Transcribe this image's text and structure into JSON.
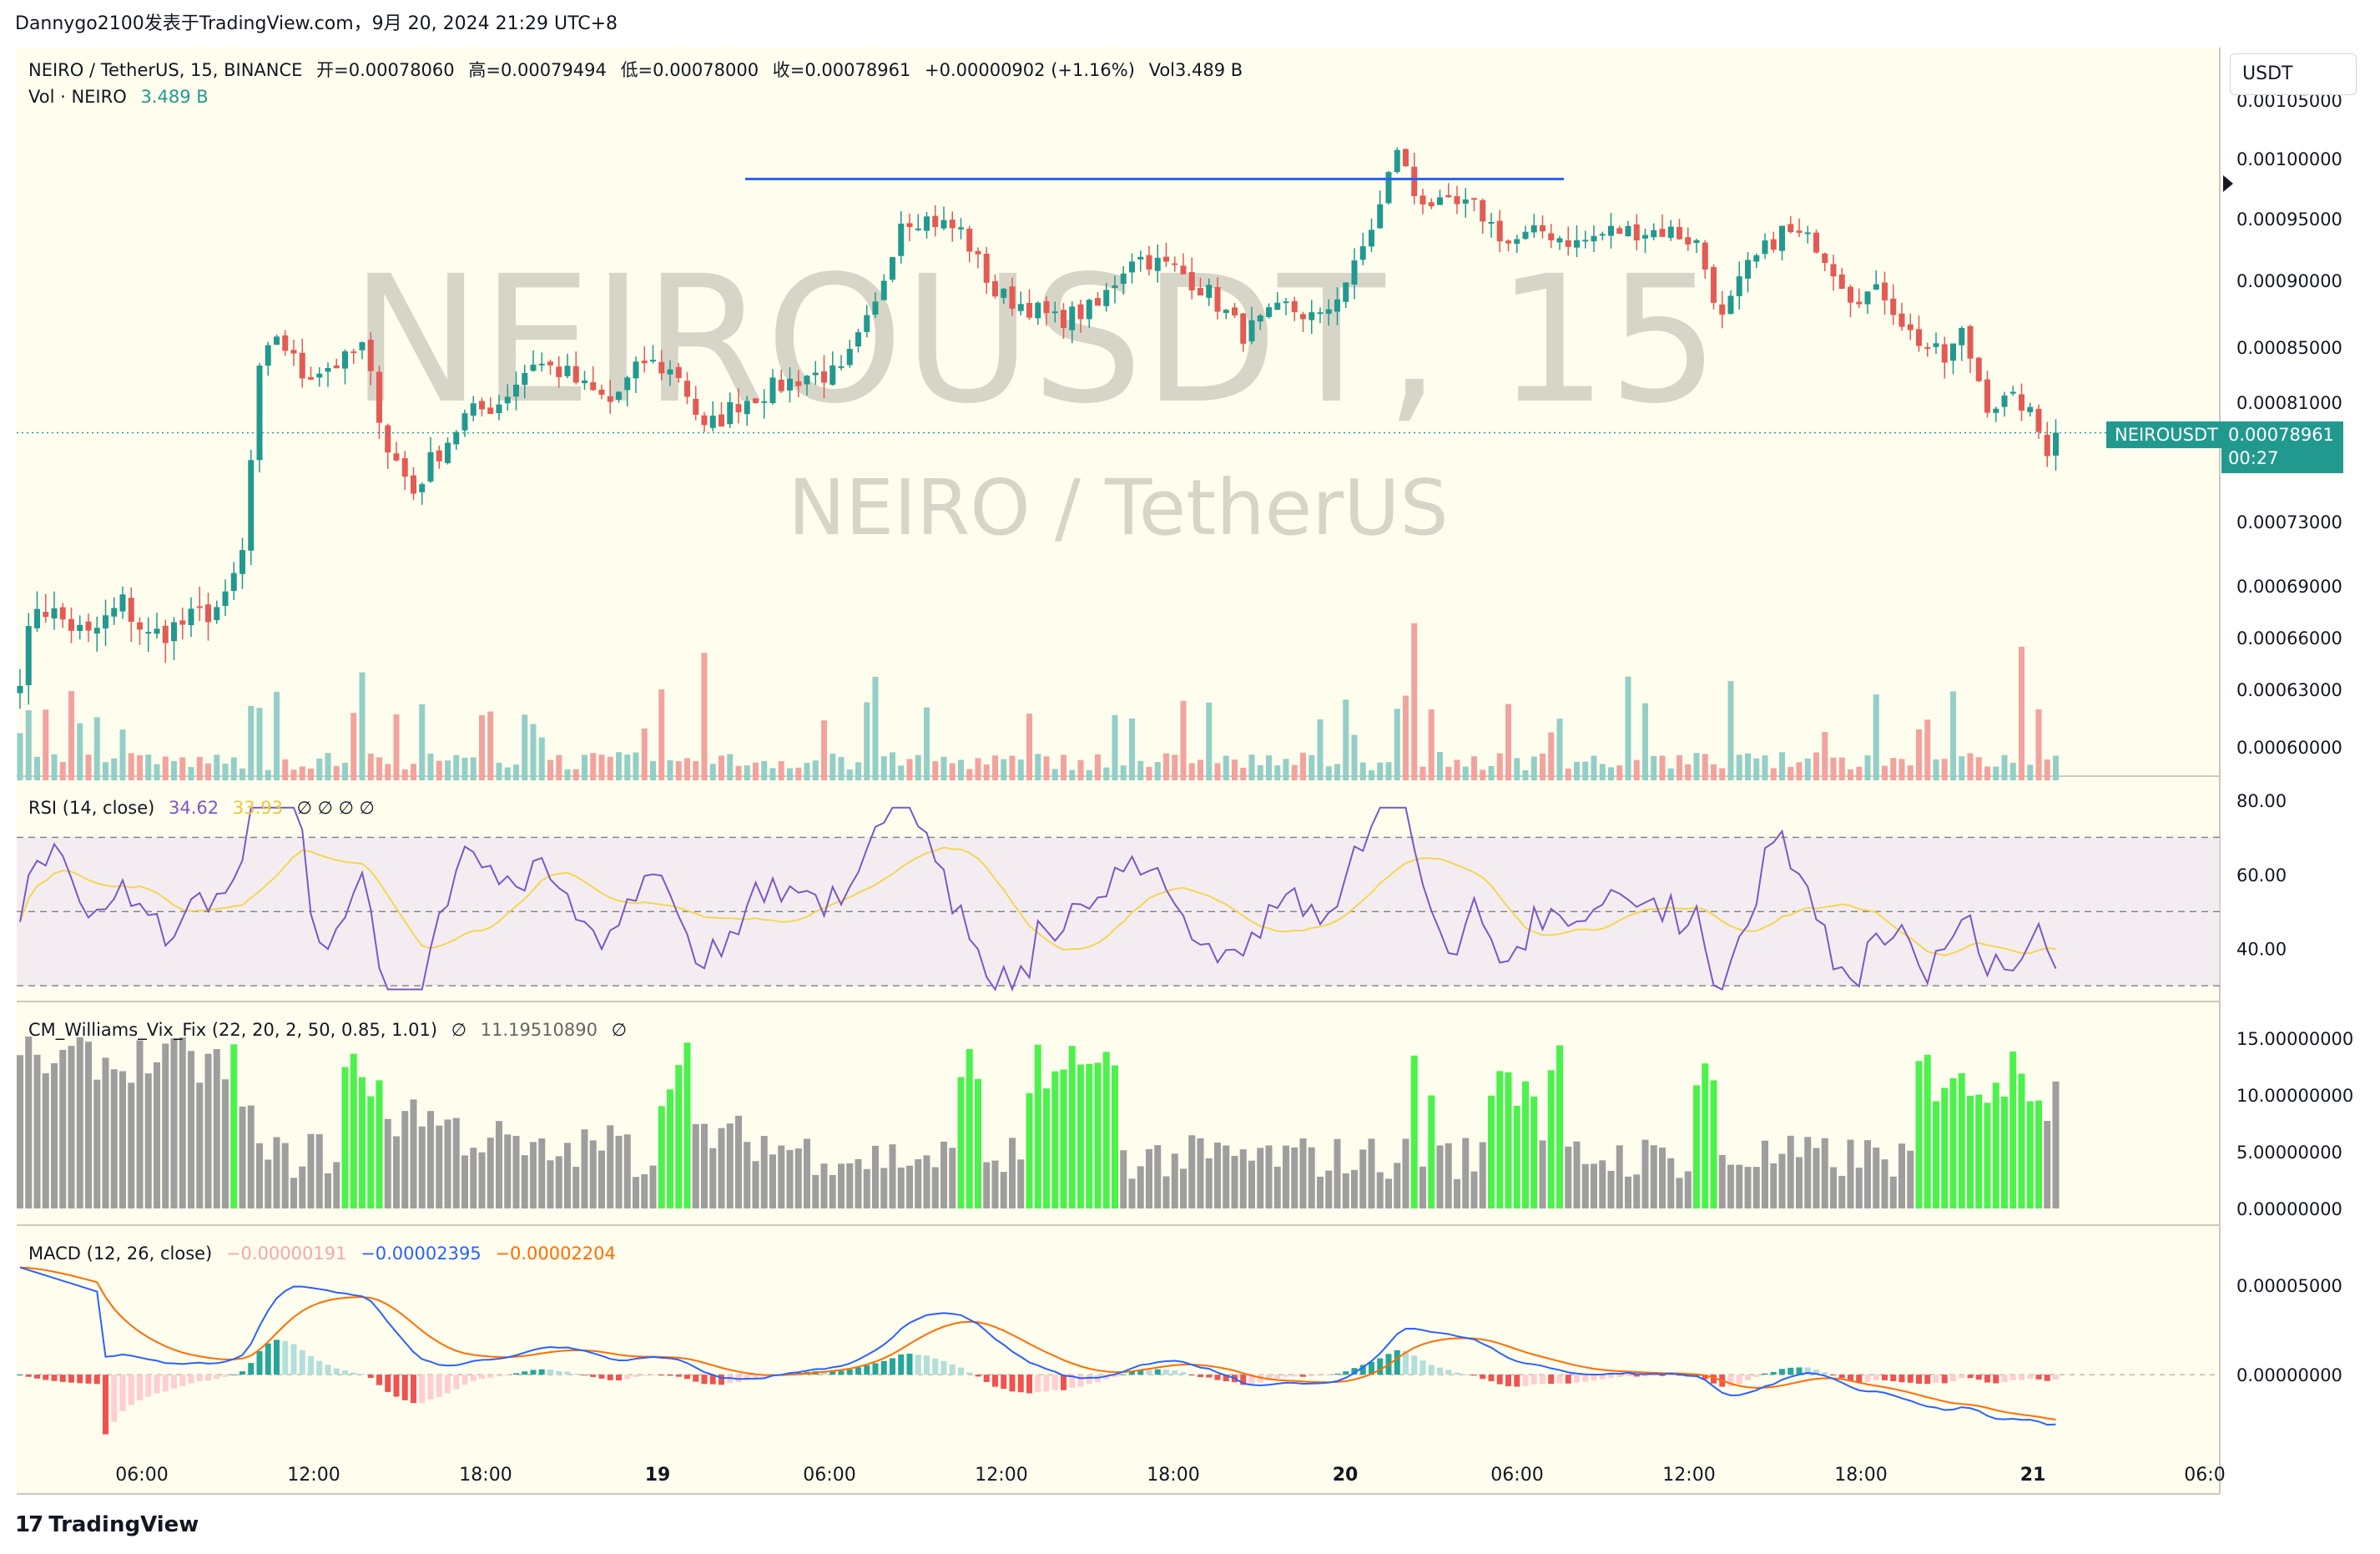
{
  "header": {
    "attribution": "Dannygo2100发表于TradingView.com，9月 20, 2024 21:29 UTC+8"
  },
  "brand": {
    "logo": "17",
    "name": "TradingView"
  },
  "currency_selector": {
    "label": "USDT"
  },
  "main_legend": {
    "symbol": "NEIRO / TetherUS, 15, BINANCE",
    "open": "开=0.00078060",
    "high": "高=0.00079494",
    "low": "低=0.00078000",
    "close": "收=0.00078961",
    "change": "+0.00000902 (+1.16%)",
    "volume": "Vol3.489 B"
  },
  "vol_legend": {
    "label": "Vol · NEIRO",
    "value": "3.489 B"
  },
  "watermark": {
    "symbol": "NEIROUSDT, 15",
    "pair": "NEIRO / TetherUS"
  },
  "price_tag": {
    "symbol": "NEIROUSDT",
    "price": "0.00078961",
    "countdown": "00:27"
  },
  "rsi_legend": {
    "label": "RSI (14, close)",
    "value": "34.62",
    "ma": "33.93",
    "extras": "∅ ∅ ∅ ∅"
  },
  "vix_legend": {
    "label": "CM_Williams_Vix_Fix (22, 20, 2, 50, 0.85, 1.01)",
    "n1": "∅",
    "value": "11.19510890",
    "n2": "∅"
  },
  "macd_legend": {
    "label": "MACD (12, 26, close)",
    "hist": "−0.00000191",
    "macd": "−0.00002395",
    "signal": "−0.00002204"
  },
  "colors": {
    "up": "#22998f",
    "down": "#e25b54",
    "bg": "#fffdee",
    "rsi": "#7e57c2",
    "rsi_ma": "#f5d552",
    "macd": "#2962ff",
    "signal": "#ff6d00",
    "vix_green": "#4cf24c",
    "vix_gray": "#9e9e9e",
    "resistance": "#2962ff"
  },
  "chart_data": [
    {
      "type": "candlestick",
      "name": "price",
      "ylim": [
        0.000575,
        0.001065
      ],
      "y_ticks": [
        "0.00105000",
        "0.00100000",
        "0.00095000",
        "0.00090000",
        "0.00085000",
        "0.00081000",
        "0.00073000",
        "0.00069000",
        "0.00066000",
        "0.00063000",
        "0.00060000"
      ],
      "x_ticks": [
        "06:00",
        "12:00",
        "18:00",
        "19",
        "06:00",
        "12:00",
        "18:00",
        "20",
        "06:00",
        "12:00",
        "18:00",
        "21",
        "06:0"
      ],
      "last_price": 0.00078961,
      "resistance_line": {
        "from": "19 04:00",
        "to": "20 08:00",
        "price": 0.000983
      },
      "waypoints": [
        [
          0,
          0.00064
        ],
        [
          2,
          0.00068
        ],
        [
          5,
          0.00067
        ],
        [
          8,
          0.00066
        ],
        [
          12,
          0.00068
        ],
        [
          15,
          0.00066
        ],
        [
          20,
          0.00067
        ],
        [
          24,
          0.00068
        ],
        [
          26,
          0.00071
        ],
        [
          28,
          0.00083
        ],
        [
          30,
          0.00086
        ],
        [
          33,
          0.00083
        ],
        [
          38,
          0.00084
        ],
        [
          40,
          0.00085
        ],
        [
          43,
          0.00078
        ],
        [
          46,
          0.00075
        ],
        [
          48,
          0.00077
        ],
        [
          52,
          0.0008
        ],
        [
          56,
          0.00081
        ],
        [
          60,
          0.00084
        ],
        [
          64,
          0.00083
        ],
        [
          66,
          0.00082
        ],
        [
          69,
          0.00081
        ],
        [
          73,
          0.00084
        ],
        [
          77,
          0.00083
        ],
        [
          80,
          0.00079
        ],
        [
          84,
          0.00081
        ],
        [
          88,
          0.00082
        ],
        [
          92,
          0.00083
        ],
        [
          96,
          0.00083
        ],
        [
          100,
          0.00088
        ],
        [
          103,
          0.00095
        ],
        [
          106,
          0.00095
        ],
        [
          110,
          0.00094
        ],
        [
          114,
          0.00089
        ],
        [
          118,
          0.00088
        ],
        [
          121,
          0.00087
        ],
        [
          126,
          0.00088
        ],
        [
          130,
          0.00092
        ],
        [
          135,
          0.00091
        ],
        [
          139,
          0.00089
        ],
        [
          143,
          0.00086
        ],
        [
          148,
          0.00088
        ],
        [
          152,
          0.00087
        ],
        [
          156,
          0.00091
        ],
        [
          159,
          0.00096
        ],
        [
          161,
          0.00101
        ],
        [
          163,
          0.00097
        ],
        [
          166,
          0.00096
        ],
        [
          170,
          0.00096
        ],
        [
          174,
          0.00093
        ],
        [
          178,
          0.00094
        ],
        [
          182,
          0.00093
        ],
        [
          186,
          0.00094
        ],
        [
          190,
          0.00094
        ],
        [
          193,
          0.00094
        ],
        [
          196,
          0.00093
        ],
        [
          199,
          0.00087
        ],
        [
          202,
          0.00091
        ],
        [
          206,
          0.00094
        ],
        [
          210,
          0.00093
        ],
        [
          214,
          0.00089
        ],
        [
          218,
          0.00089
        ],
        [
          221,
          0.00086
        ],
        [
          225,
          0.00084
        ],
        [
          227,
          0.00086
        ],
        [
          230,
          0.00081
        ],
        [
          234,
          0.00081
        ],
        [
          237,
          0.00078
        ],
        [
          238,
          0.00079
        ]
      ]
    },
    {
      "type": "bar",
      "name": "volume",
      "latest": "3.489 B"
    },
    {
      "type": "line",
      "name": "RSI (14, close)",
      "ylim": [
        28,
        82
      ],
      "y_ticks": [
        "80.00",
        "60.00",
        "40.00"
      ],
      "bands": [
        70,
        50,
        30
      ],
      "latest": {
        "rsi": 34.62,
        "ma": 33.93
      }
    },
    {
      "type": "bar",
      "name": "CM_Williams_Vix_Fix (22, 20, 2, 50, 0.85, 1.01)",
      "ylim": [
        0,
        17.5
      ],
      "y_ticks": [
        "15.00000000",
        "10.00000000",
        "5.00000000",
        "0.00000000"
      ],
      "latest": 11.1951089
    },
    {
      "type": "line",
      "name": "MACD (12, 26, close)",
      "ylim": [
        -3.4e-05,
        7.8e-05
      ],
      "y_ticks": [
        "0.00005000",
        "0.00000000"
      ],
      "latest": {
        "hist": -1.91e-06,
        "macd": -2.395e-05,
        "signal": -2.204e-05
      }
    }
  ]
}
